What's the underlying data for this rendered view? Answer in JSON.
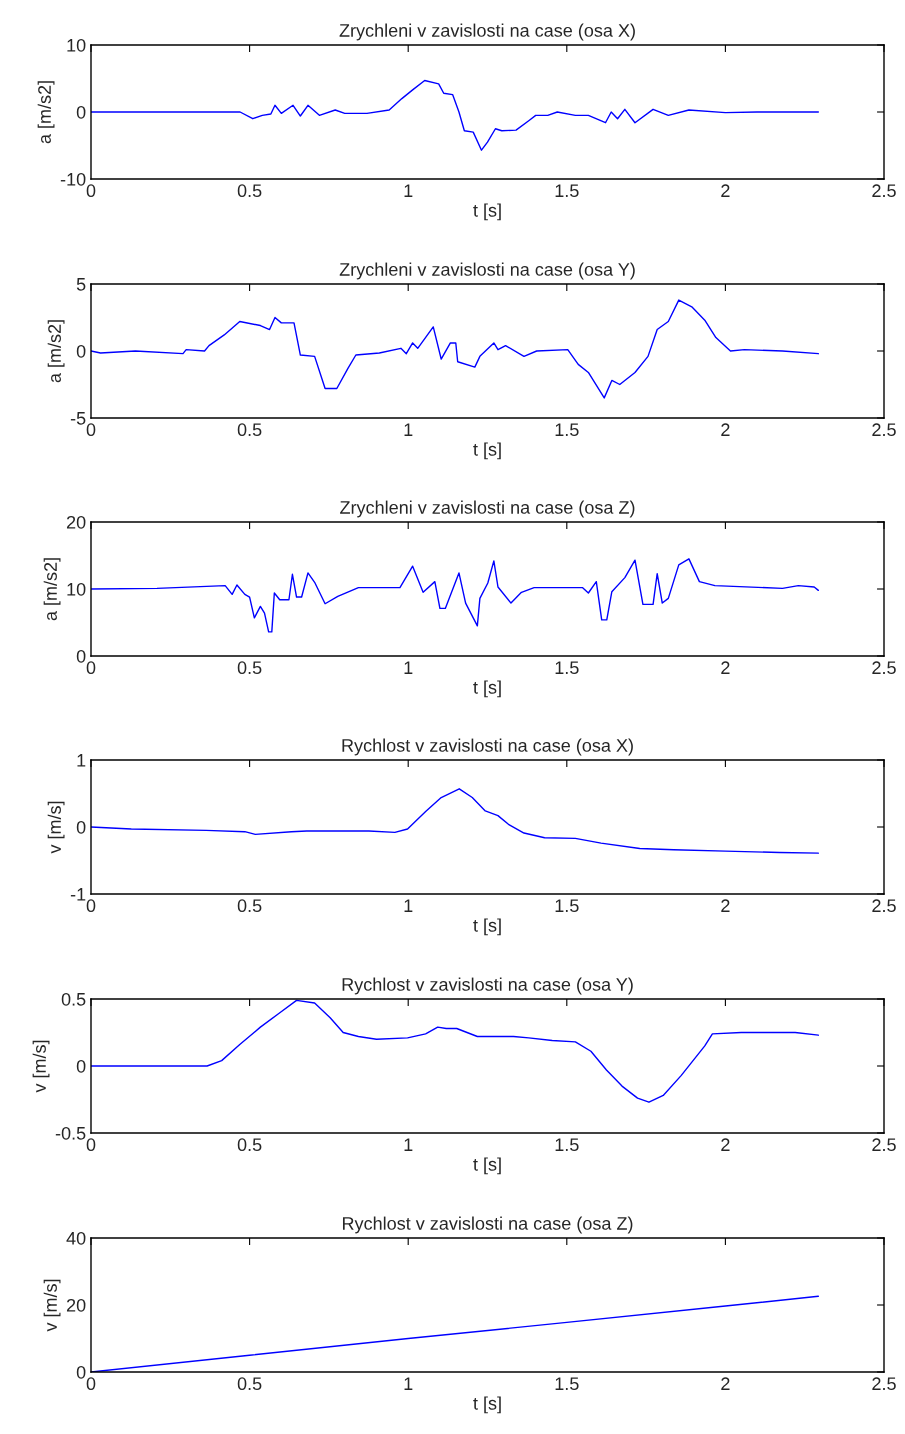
{
  "chart_data": [
    {
      "type": "line",
      "title": "Zrychleni v zavislosti na case (osa X)",
      "xlabel": "t [s]",
      "ylabel": "a [m/s2]",
      "xlim": [
        0,
        2.5
      ],
      "xticks": [
        0,
        0.5,
        1,
        1.5,
        2,
        2.5
      ],
      "ylim": [
        -10,
        10
      ],
      "yticks": [
        -10,
        0,
        10
      ],
      "grid": false,
      "legend": false,
      "series": [
        {
          "color": "#0000ff",
          "x": [
            0,
            0.47,
            0.51,
            0.54,
            0.567,
            0.58,
            0.6,
            0.637,
            0.66,
            0.684,
            0.72,
            0.77,
            0.8,
            0.87,
            0.94,
            0.98,
            1.014,
            1.052,
            1.096,
            1.112,
            1.14,
            1.16,
            1.177,
            1.205,
            1.231,
            1.25,
            1.275,
            1.295,
            1.34,
            1.38,
            1.402,
            1.44,
            1.47,
            1.527,
            1.568,
            1.622,
            1.64,
            1.66,
            1.683,
            1.715,
            1.772,
            1.82,
            1.885,
            2.0,
            2.1,
            2.293
          ],
          "values": [
            0,
            0,
            -1,
            -0.5,
            -0.3,
            1,
            -0.2,
            1,
            -0.6,
            1,
            -0.5,
            0.3,
            -0.2,
            -0.2,
            0.3,
            2,
            3.3,
            4.7,
            4.2,
            2.8,
            2.6,
            0,
            -2.8,
            -3,
            -5.7,
            -4.5,
            -2.5,
            -2.8,
            -2.7,
            -1.3,
            -0.5,
            -0.5,
            0,
            -0.5,
            -0.5,
            -1.6,
            0,
            -1,
            0.4,
            -1.6,
            0.4,
            -0.5,
            0.3,
            -0.1,
            0,
            0
          ]
        }
      ]
    },
    {
      "type": "line",
      "title": "Zrychleni v zavislosti na case (osa Y)",
      "xlabel": "t [s]",
      "ylabel": "a [m/s2]",
      "xlim": [
        0,
        2.5
      ],
      "xticks": [
        0,
        0.5,
        1,
        1.5,
        2,
        2.5
      ],
      "ylim": [
        -5,
        5
      ],
      "yticks": [
        -5,
        0,
        5
      ],
      "grid": false,
      "legend": false,
      "series": [
        {
          "color": "#0000ff",
          "x": [
            0,
            0.03,
            0.14,
            0.29,
            0.3,
            0.358,
            0.372,
            0.42,
            0.469,
            0.534,
            0.563,
            0.58,
            0.6,
            0.64,
            0.66,
            0.705,
            0.738,
            0.775,
            0.81,
            0.835,
            0.909,
            0.977,
            0.994,
            1.014,
            1.03,
            1.079,
            1.104,
            1.133,
            1.15,
            1.156,
            1.21,
            1.226,
            1.27,
            1.283,
            1.307,
            1.365,
            1.405,
            1.503,
            1.536,
            1.568,
            1.618,
            1.642,
            1.667,
            1.715,
            1.756,
            1.785,
            1.82,
            1.853,
            1.894,
            1.935,
            1.97,
            2.016,
            2.06,
            2.18,
            2.293
          ],
          "values": [
            0,
            -0.15,
            0,
            -0.2,
            0.1,
            0,
            0.4,
            1.2,
            2.2,
            1.9,
            1.6,
            2.5,
            2.1,
            2.1,
            -0.3,
            -0.4,
            -2.8,
            -2.8,
            -1.3,
            -0.3,
            -0.15,
            0.2,
            -0.2,
            0.6,
            0.2,
            1.8,
            -0.6,
            0.6,
            0.6,
            -0.8,
            -1.2,
            -0.4,
            0.6,
            0.1,
            0.4,
            -0.4,
            0,
            0.1,
            -1,
            -1.6,
            -3.5,
            -2.2,
            -2.5,
            -1.6,
            -0.4,
            1.6,
            2.2,
            3.8,
            3.3,
            2.3,
            1,
            0,
            0.1,
            0,
            -0.2
          ]
        }
      ]
    },
    {
      "type": "line",
      "title": "Zrychleni v zavislosti na case (osa Z)",
      "xlabel": "t [s]",
      "ylabel": "a [m/s2]",
      "xlim": [
        0,
        2.5
      ],
      "xticks": [
        0,
        0.5,
        1,
        1.5,
        2,
        2.5
      ],
      "ylim": [
        0,
        20
      ],
      "yticks": [
        0,
        10,
        20
      ],
      "grid": false,
      "legend": false,
      "series": [
        {
          "color": "#0000ff",
          "x": [
            0,
            0.208,
            0.423,
            0.445,
            0.46,
            0.485,
            0.5,
            0.515,
            0.534,
            0.547,
            0.56,
            0.57,
            0.578,
            0.595,
            0.624,
            0.635,
            0.648,
            0.664,
            0.684,
            0.705,
            0.738,
            0.778,
            0.843,
            0.974,
            1.014,
            1.047,
            1.084,
            1.1,
            1.117,
            1.16,
            1.181,
            1.218,
            1.226,
            1.251,
            1.27,
            1.283,
            1.324,
            1.357,
            1.397,
            1.55,
            1.568,
            1.593,
            1.61,
            1.626,
            1.642,
            1.683,
            1.715,
            1.74,
            1.772,
            1.785,
            1.801,
            1.82,
            1.853,
            1.885,
            1.918,
            1.967,
            2.18,
            2.23,
            2.28,
            2.293
          ],
          "values": [
            10,
            10.1,
            10.5,
            9.2,
            10.6,
            9.2,
            8.8,
            5.7,
            7.4,
            6.4,
            3.6,
            3.6,
            9.4,
            8.4,
            8.4,
            12.2,
            8.8,
            8.8,
            12.4,
            11,
            7.8,
            8.9,
            10.2,
            10.2,
            13.4,
            9.5,
            11.1,
            7.1,
            7.1,
            12.4,
            7.9,
            4.5,
            8.6,
            10.9,
            14.2,
            10.3,
            7.9,
            9.5,
            10.2,
            10.2,
            9.4,
            11.1,
            5.4,
            5.4,
            9.6,
            11.7,
            14.3,
            7.7,
            7.7,
            12.3,
            7.9,
            8.6,
            13.6,
            14.5,
            11.1,
            10.5,
            10.1,
            10.5,
            10.3,
            9.8
          ]
        }
      ]
    },
    {
      "type": "line",
      "title": "Rychlost v zavislosti na case (osa X)",
      "xlabel": "t [s]",
      "ylabel": "v [m/s]",
      "xlim": [
        0,
        2.5
      ],
      "xticks": [
        0,
        0.5,
        1,
        1.5,
        2,
        2.5
      ],
      "ylim": [
        -1,
        1
      ],
      "yticks": [
        -1,
        0,
        1
      ],
      "grid": false,
      "legend": false,
      "series": [
        {
          "color": "#0000ff",
          "x": [
            0,
            0.127,
            0.363,
            0.485,
            0.518,
            0.632,
            0.68,
            0.876,
            0.958,
            0.998,
            1.055,
            1.104,
            1.161,
            1.202,
            1.243,
            1.283,
            1.316,
            1.365,
            1.43,
            1.527,
            1.608,
            1.73,
            1.837,
            2.0,
            2.171,
            2.293
          ],
          "values": [
            0,
            -0.03,
            -0.05,
            -0.07,
            -0.11,
            -0.07,
            -0.06,
            -0.06,
            -0.08,
            -0.03,
            0.23,
            0.44,
            0.57,
            0.44,
            0.24,
            0.17,
            0.04,
            -0.09,
            -0.16,
            -0.17,
            -0.24,
            -0.32,
            -0.34,
            -0.36,
            -0.38,
            -0.39
          ]
        }
      ]
    },
    {
      "type": "line",
      "title": "Rychlost v zavislosti na case (osa Y)",
      "xlabel": "t [s]",
      "ylabel": "v [m/s]",
      "xlim": [
        0,
        2.5
      ],
      "xticks": [
        0,
        0.5,
        1,
        1.5,
        2,
        2.5
      ],
      "ylim": [
        -0.5,
        0.5
      ],
      "yticks": [
        -0.5,
        0,
        0.5
      ],
      "grid": false,
      "legend": false,
      "series": [
        {
          "color": "#0000ff",
          "x": [
            0,
            0.366,
            0.412,
            0.469,
            0.534,
            0.591,
            0.648,
            0.705,
            0.754,
            0.795,
            0.843,
            0.9,
            0.998,
            1.055,
            1.093,
            1.12,
            1.153,
            1.218,
            1.332,
            1.38,
            1.454,
            1.527,
            1.576,
            1.625,
            1.674,
            1.723,
            1.759,
            1.804,
            1.861,
            1.935,
            1.959,
            2.05,
            2.22,
            2.293
          ],
          "values": [
            0,
            0,
            0.04,
            0.16,
            0.29,
            0.39,
            0.49,
            0.47,
            0.36,
            0.25,
            0.22,
            0.2,
            0.21,
            0.24,
            0.29,
            0.28,
            0.28,
            0.22,
            0.22,
            0.21,
            0.19,
            0.18,
            0.11,
            -0.03,
            -0.15,
            -0.24,
            -0.27,
            -0.22,
            -0.07,
            0.15,
            0.24,
            0.25,
            0.25,
            0.23
          ]
        }
      ]
    },
    {
      "type": "line",
      "title": "Rychlost v zavislosti na case (osa Z)",
      "xlabel": "t [s]",
      "ylabel": "v [m/s]",
      "xlim": [
        0,
        2.5
      ],
      "xticks": [
        0,
        0.5,
        1,
        1.5,
        2,
        2.5
      ],
      "ylim": [
        0,
        40
      ],
      "yticks": [
        0,
        20,
        40
      ],
      "grid": false,
      "legend": false,
      "series": [
        {
          "color": "#0000ff",
          "x": [
            0,
            0.5,
            1,
            1.5,
            2,
            2.293
          ],
          "values": [
            0,
            5,
            10,
            14.8,
            19.7,
            22.6
          ]
        }
      ]
    }
  ]
}
